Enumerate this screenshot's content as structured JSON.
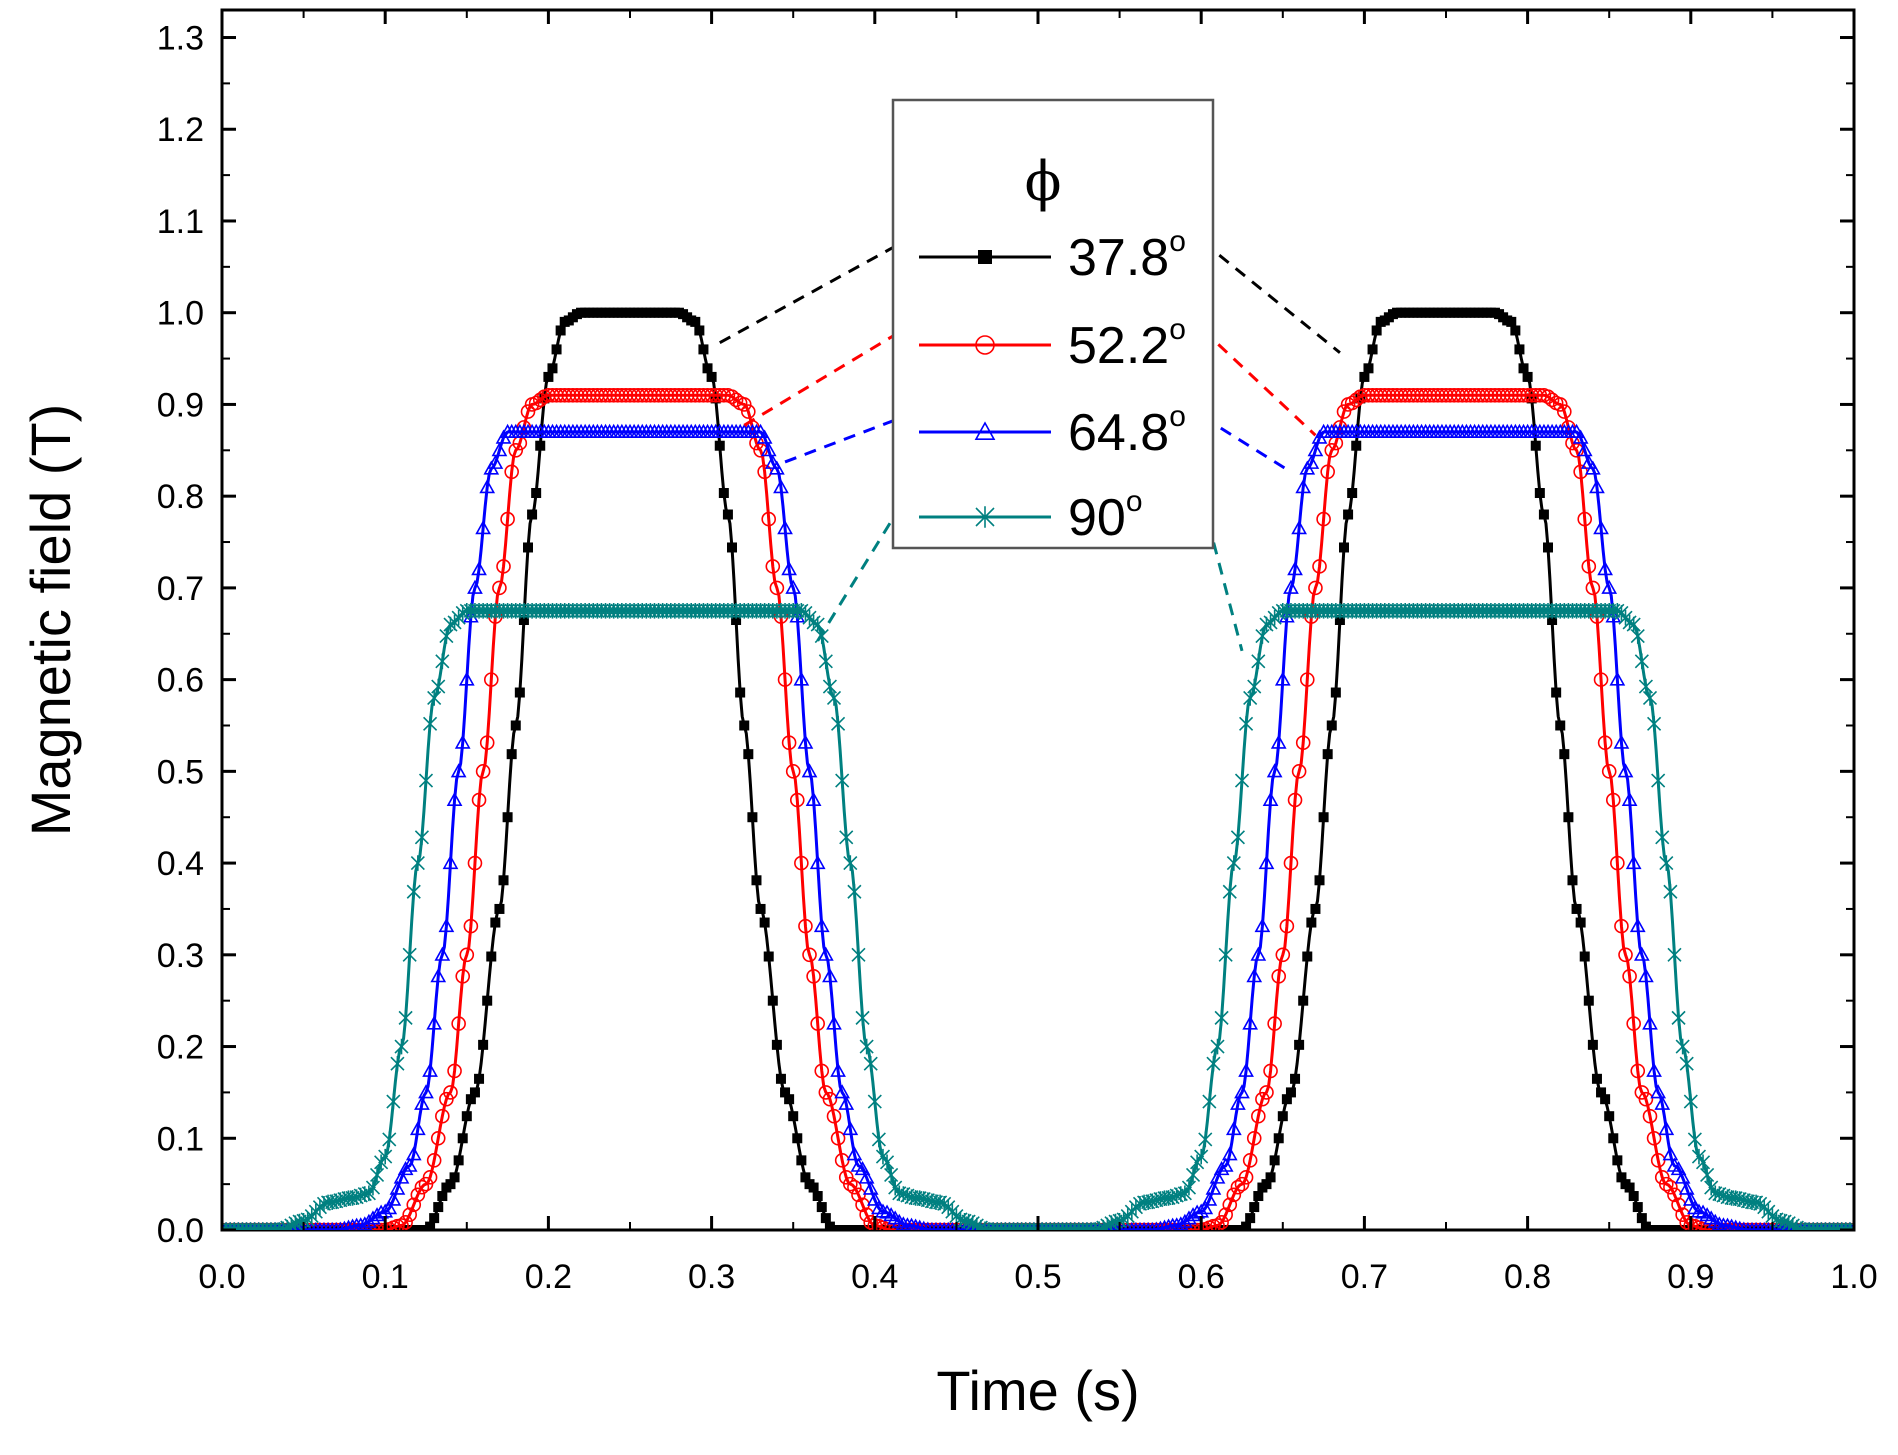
{
  "chart_data": {
    "type": "scatter",
    "xlabel": "Time (s)",
    "ylabel": "Magnetic field (T)",
    "xlim": [
      0.0,
      1.0
    ],
    "ylim": [
      0.0,
      1.33
    ],
    "x_ticks": [
      "0.0",
      "0.1",
      "0.2",
      "0.3",
      "0.4",
      "0.5",
      "0.6",
      "0.7",
      "0.8",
      "0.9",
      "1.0"
    ],
    "y_ticks": [
      "0.0",
      "0.1",
      "0.2",
      "0.3",
      "0.4",
      "0.5",
      "0.6",
      "0.7",
      "0.8",
      "0.9",
      "1.0",
      "1.1",
      "1.2",
      "1.3"
    ],
    "grid": false,
    "legend": {
      "title": "ϕ",
      "placement": "top-center",
      "degree_symbol": "o"
    },
    "period_s": 0.5,
    "series": [
      {
        "name": "37.8",
        "color": "#000000",
        "marker": "filled-square",
        "plateau_T": 1.0,
        "pulse_points": [
          [
            0.0,
            0.0
          ],
          [
            0.11,
            0.0
          ],
          [
            0.125,
            0.0
          ],
          [
            0.14,
            0.05
          ],
          [
            0.155,
            0.15
          ],
          [
            0.17,
            0.35
          ],
          [
            0.18,
            0.55
          ],
          [
            0.19,
            0.78
          ],
          [
            0.2,
            0.93
          ],
          [
            0.21,
            0.99
          ],
          [
            0.22,
            1.0
          ],
          [
            0.28,
            1.0
          ],
          [
            0.29,
            0.99
          ],
          [
            0.3,
            0.93
          ],
          [
            0.31,
            0.78
          ],
          [
            0.32,
            0.55
          ],
          [
            0.33,
            0.35
          ],
          [
            0.345,
            0.15
          ],
          [
            0.36,
            0.05
          ],
          [
            0.375,
            0.0
          ],
          [
            0.39,
            0.0
          ],
          [
            0.5,
            0.0
          ]
        ]
      },
      {
        "name": "52.2",
        "color": "#ff0000",
        "marker": "open-circle",
        "plateau_T": 0.91,
        "pulse_points": [
          [
            0.0,
            0.0
          ],
          [
            0.1,
            0.0
          ],
          [
            0.11,
            0.005
          ],
          [
            0.125,
            0.05
          ],
          [
            0.14,
            0.15
          ],
          [
            0.15,
            0.3
          ],
          [
            0.16,
            0.5
          ],
          [
            0.17,
            0.7
          ],
          [
            0.18,
            0.85
          ],
          [
            0.19,
            0.9
          ],
          [
            0.2,
            0.91
          ],
          [
            0.31,
            0.91
          ],
          [
            0.32,
            0.9
          ],
          [
            0.33,
            0.85
          ],
          [
            0.34,
            0.7
          ],
          [
            0.35,
            0.5
          ],
          [
            0.36,
            0.3
          ],
          [
            0.37,
            0.15
          ],
          [
            0.385,
            0.05
          ],
          [
            0.4,
            0.005
          ],
          [
            0.41,
            0.0
          ],
          [
            0.5,
            0.0
          ]
        ]
      },
      {
        "name": "64.8",
        "color": "#0000ff",
        "marker": "open-triangle",
        "plateau_T": 0.87,
        "pulse_points": [
          [
            0.0,
            0.0
          ],
          [
            0.07,
            0.0
          ],
          [
            0.085,
            0.005
          ],
          [
            0.1,
            0.02
          ],
          [
            0.115,
            0.07
          ],
          [
            0.125,
            0.15
          ],
          [
            0.135,
            0.3
          ],
          [
            0.145,
            0.5
          ],
          [
            0.155,
            0.7
          ],
          [
            0.165,
            0.83
          ],
          [
            0.175,
            0.87
          ],
          [
            0.33,
            0.87
          ],
          [
            0.34,
            0.83
          ],
          [
            0.35,
            0.7
          ],
          [
            0.36,
            0.5
          ],
          [
            0.37,
            0.3
          ],
          [
            0.38,
            0.15
          ],
          [
            0.39,
            0.07
          ],
          [
            0.405,
            0.02
          ],
          [
            0.42,
            0.005
          ],
          [
            0.435,
            0.0
          ],
          [
            0.5,
            0.0
          ]
        ]
      },
      {
        "name": "90",
        "color": "#008080",
        "marker": "asterisk",
        "plateau_T": 0.675,
        "pulse_points": [
          [
            0.0,
            0.0
          ],
          [
            0.035,
            0.0
          ],
          [
            0.05,
            0.01
          ],
          [
            0.065,
            0.03
          ],
          [
            0.08,
            0.035
          ],
          [
            0.09,
            0.04
          ],
          [
            0.1,
            0.08
          ],
          [
            0.11,
            0.2
          ],
          [
            0.12,
            0.4
          ],
          [
            0.13,
            0.58
          ],
          [
            0.14,
            0.66
          ],
          [
            0.15,
            0.675
          ],
          [
            0.355,
            0.675
          ],
          [
            0.365,
            0.66
          ],
          [
            0.375,
            0.58
          ],
          [
            0.385,
            0.4
          ],
          [
            0.395,
            0.2
          ],
          [
            0.405,
            0.08
          ],
          [
            0.415,
            0.04
          ],
          [
            0.425,
            0.035
          ],
          [
            0.44,
            0.03
          ],
          [
            0.455,
            0.01
          ],
          [
            0.47,
            0.0
          ],
          [
            0.5,
            0.0
          ]
        ]
      }
    ]
  }
}
